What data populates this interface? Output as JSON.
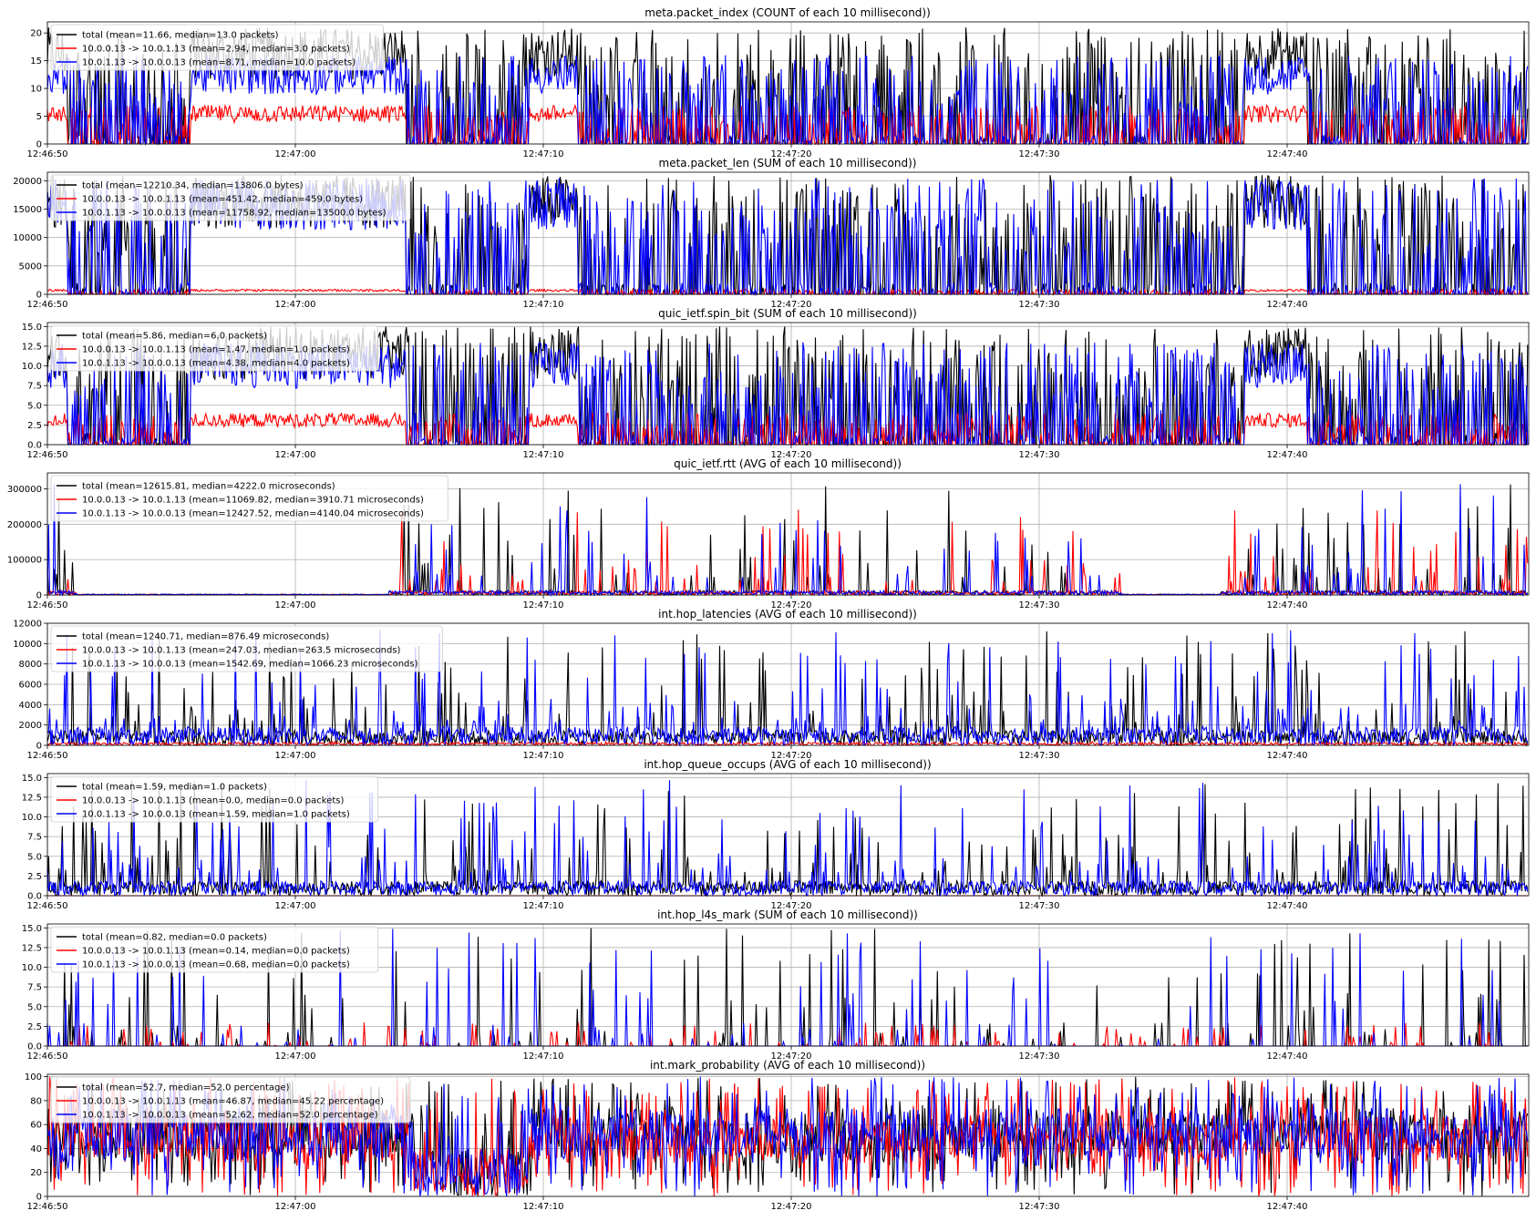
{
  "x_ticks": [
    "12:46:50",
    "12:47:00",
    "12:47:10",
    "12:47:20",
    "12:47:30",
    "12:47:40"
  ],
  "chart_data": [
    {
      "type": "line",
      "title": "meta.packet_index (COUNT of each 10 millisecond))",
      "x_range": [
        "12:46:50",
        "12:47:50"
      ],
      "ylim": [
        0,
        22
      ],
      "y_ticks": [
        "0",
        "5",
        "10",
        "15",
        "20"
      ],
      "y_tick_values": [
        0,
        5,
        10,
        15,
        20
      ],
      "grid": true,
      "legend_position": "upper-left",
      "series": [
        {
          "name": "total (mean=11.66, median=13.0 packets)",
          "color": "#000000",
          "mean": 11.66,
          "median": 13.0,
          "max": 21
        },
        {
          "name": "10.0.0.13 -> 10.0.1.13 (mean=2.94, median=3.0 packets)",
          "color": "#ff0000",
          "mean": 2.94,
          "median": 3.0,
          "max": 7
        },
        {
          "name": "10.0.1.13 -> 10.0.0.13 (mean=8.71, median=10.0 packets)",
          "color": "#0000ff",
          "mean": 8.71,
          "median": 10.0,
          "max": 16
        }
      ]
    },
    {
      "type": "line",
      "title": "meta.packet_len (SUM of each 10 millisecond))",
      "x_range": [
        "12:46:50",
        "12:47:50"
      ],
      "ylim": [
        0,
        21500
      ],
      "y_ticks": [
        "0",
        "5000",
        "10000",
        "15000",
        "20000"
      ],
      "y_tick_values": [
        0,
        5000,
        10000,
        15000,
        20000
      ],
      "grid": true,
      "legend_position": "upper-left",
      "series": [
        {
          "name": "total (mean=12210.34, median=13806.0 bytes)",
          "color": "#000000",
          "mean": 12210.34,
          "median": 13806.0,
          "max": 21000
        },
        {
          "name": "10.0.0.13 -> 10.0.1.13 (mean=451.42, median=459.0 bytes)",
          "color": "#ff0000",
          "mean": 451.42,
          "median": 459.0,
          "max": 900
        },
        {
          "name": "10.0.1.13 -> 10.0.0.13 (mean=11758.92, median=13500.0 bytes)",
          "color": "#0000ff",
          "mean": 11758.92,
          "median": 13500.0,
          "max": 20500
        }
      ]
    },
    {
      "type": "line",
      "title": "quic_ietf.spin_bit (SUM of each 10 millisecond))",
      "x_range": [
        "12:46:50",
        "12:47:50"
      ],
      "ylim": [
        0,
        15.5
      ],
      "y_ticks": [
        "0.0",
        "2.5",
        "5.0",
        "7.5",
        "10.0",
        "12.5",
        "15.0"
      ],
      "y_tick_values": [
        0,
        2.5,
        5,
        7.5,
        10,
        12.5,
        15
      ],
      "grid": true,
      "legend_position": "upper-left",
      "series": [
        {
          "name": "total (mean=5.86, median=6.0 packets)",
          "color": "#000000",
          "mean": 5.86,
          "median": 6.0,
          "max": 15
        },
        {
          "name": "10.0.0.13 -> 10.0.1.13 (mean=1.47, median=1.0 packets)",
          "color": "#ff0000",
          "mean": 1.47,
          "median": 1.0,
          "max": 4
        },
        {
          "name": "10.0.1.13 -> 10.0.0.13 (mean=4.38, median=4.0 packets)",
          "color": "#0000ff",
          "mean": 4.38,
          "median": 4.0,
          "max": 13
        }
      ]
    },
    {
      "type": "line",
      "title": "quic_ietf.rtt (AVG of each 10 millisecond))",
      "x_range": [
        "12:46:50",
        "12:47:50"
      ],
      "ylim": [
        0,
        345000
      ],
      "y_ticks": [
        "0",
        "100000",
        "200000",
        "300000"
      ],
      "y_tick_values": [
        0,
        100000,
        200000,
        300000
      ],
      "grid": true,
      "legend_position": "upper-left",
      "series": [
        {
          "name": "total (mean=12615.81, median=4222.0 microseconds)",
          "color": "#000000",
          "mean": 12615.81,
          "median": 4222.0,
          "max": 330000
        },
        {
          "name": "10.0.0.13 -> 10.0.1.13 (mean=11069.82, median=3910.71 microseconds)",
          "color": "#ff0000",
          "mean": 11069.82,
          "median": 3910.71,
          "max": 250000
        },
        {
          "name": "10.0.1.13 -> 10.0.0.13 (mean=12427.52, median=4140.04 microseconds)",
          "color": "#0000ff",
          "mean": 12427.52,
          "median": 4140.04,
          "max": 330000
        }
      ]
    },
    {
      "type": "line",
      "title": "int.hop_latencies (AVG of each 10 millisecond))",
      "x_range": [
        "12:46:50",
        "12:47:50"
      ],
      "ylim": [
        0,
        12000
      ],
      "y_ticks": [
        "0",
        "2000",
        "4000",
        "6000",
        "8000",
        "10000",
        "12000"
      ],
      "y_tick_values": [
        0,
        2000,
        4000,
        6000,
        8000,
        10000,
        12000
      ],
      "grid": true,
      "legend_position": "upper-left",
      "series": [
        {
          "name": "total (mean=1240.71, median=876.49 microseconds)",
          "color": "#000000",
          "mean": 1240.71,
          "median": 876.49,
          "max": 11500
        },
        {
          "name": "10.0.0.13 -> 10.0.1.13 (mean=247.03, median=263.5 microseconds)",
          "color": "#ff0000",
          "mean": 247.03,
          "median": 263.5,
          "max": 400
        },
        {
          "name": "10.0.1.13 -> 10.0.0.13 (mean=1542.69, median=1066.23 microseconds)",
          "color": "#0000ff",
          "mean": 1542.69,
          "median": 1066.23,
          "max": 11500
        }
      ]
    },
    {
      "type": "line",
      "title": "int.hop_queue_occups (AVG of each 10 millisecond))",
      "x_range": [
        "12:46:50",
        "12:47:50"
      ],
      "ylim": [
        0,
        15.5
      ],
      "y_ticks": [
        "0.0",
        "2.5",
        "5.0",
        "7.5",
        "10.0",
        "12.5",
        "15.0"
      ],
      "y_tick_values": [
        0,
        2.5,
        5,
        7.5,
        10,
        12.5,
        15
      ],
      "grid": true,
      "legend_position": "upper-left",
      "series": [
        {
          "name": "total (mean=1.59, median=1.0 packets)",
          "color": "#000000",
          "mean": 1.59,
          "median": 1.0,
          "max": 15
        },
        {
          "name": "10.0.0.13 -> 10.0.1.13 (mean=0.0, median=0.0 packets)",
          "color": "#ff0000",
          "mean": 0.0,
          "median": 0.0,
          "max": 0
        },
        {
          "name": "10.0.1.13 -> 10.0.0.13 (mean=1.59, median=1.0 packets)",
          "color": "#0000ff",
          "mean": 1.59,
          "median": 1.0,
          "max": 15
        }
      ]
    },
    {
      "type": "line",
      "title": "int.hop_l4s_mark (SUM of each 10 millisecond))",
      "x_range": [
        "12:46:50",
        "12:47:50"
      ],
      "ylim": [
        0,
        15.5
      ],
      "y_ticks": [
        "0.0",
        "2.5",
        "5.0",
        "7.5",
        "10.0",
        "12.5",
        "15.0"
      ],
      "y_tick_values": [
        0,
        2.5,
        5,
        7.5,
        10,
        12.5,
        15
      ],
      "grid": true,
      "legend_position": "upper-left",
      "series": [
        {
          "name": "total (mean=0.82, median=0.0 packets)",
          "color": "#000000",
          "mean": 0.82,
          "median": 0.0,
          "max": 15
        },
        {
          "name": "10.0.0.13 -> 10.0.1.13 (mean=0.14, median=0.0 packets)",
          "color": "#ff0000",
          "mean": 0.14,
          "median": 0.0,
          "max": 3
        },
        {
          "name": "10.0.1.13 -> 10.0.0.13 (mean=0.68, median=0.0 packets)",
          "color": "#0000ff",
          "mean": 0.68,
          "median": 0.0,
          "max": 15
        }
      ]
    },
    {
      "type": "line",
      "title": "int.mark_probability (AVG of each 10 millisecond))",
      "x_range": [
        "12:46:50",
        "12:47:50"
      ],
      "ylim": [
        0,
        102
      ],
      "y_ticks": [
        "0",
        "20",
        "40",
        "60",
        "80",
        "100"
      ],
      "y_tick_values": [
        0,
        20,
        40,
        60,
        80,
        100
      ],
      "grid": true,
      "legend_position": "upper-left",
      "series": [
        {
          "name": "total (mean=52.7, median=52.0 percentage)",
          "color": "#000000",
          "mean": 52.7,
          "median": 52.0,
          "max": 100
        },
        {
          "name": "10.0.0.13 -> 10.0.1.13 (mean=46.87, median=45.22 percentage)",
          "color": "#ff0000",
          "mean": 46.87,
          "median": 45.22,
          "max": 100
        },
        {
          "name": "10.0.1.13 -> 10.0.0.13 (mean=52.62, median=52.0 percentage)",
          "color": "#0000ff",
          "mean": 52.62,
          "median": 52.0,
          "max": 100
        }
      ]
    }
  ]
}
